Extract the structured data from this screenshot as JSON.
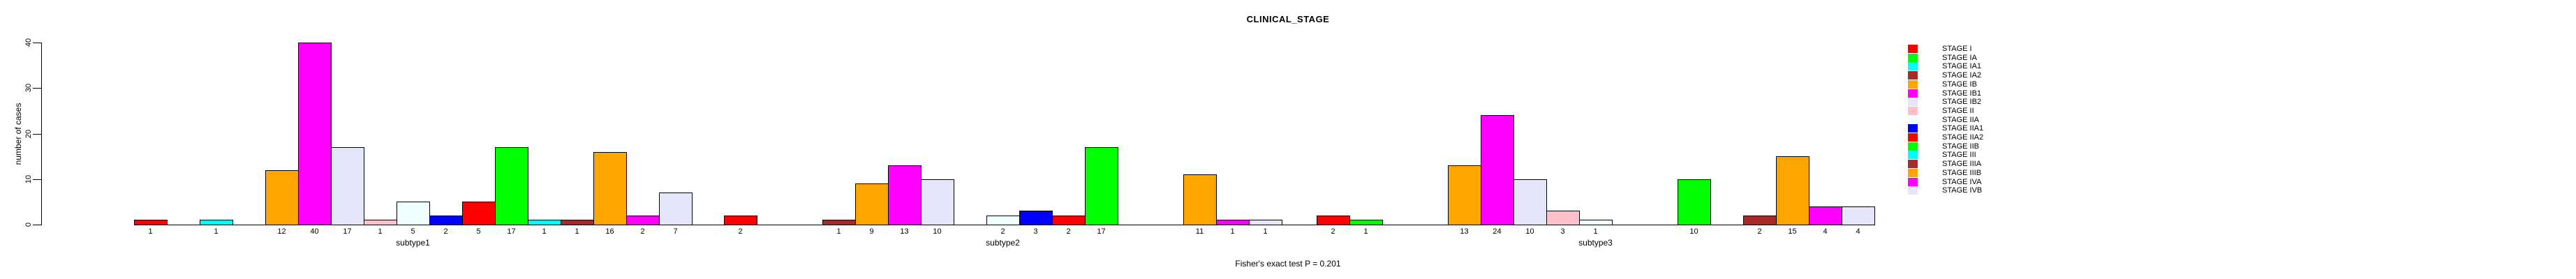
{
  "title": "CLINICAL_STAGE",
  "footer": "Fisher's exact test P = 0.201",
  "y_axis": {
    "label": "number of cases"
  },
  "chart_data": {
    "type": "bar",
    "title": "CLINICAL_STAGE",
    "ylabel": "number of cases",
    "annotation": "Fisher's exact test P = 0.201",
    "ylim": [
      0,
      40
    ],
    "yticks": [
      0,
      10,
      20,
      30,
      40
    ],
    "grid": false,
    "legend_position": "right-of-plot",
    "categories": [
      "subtype1",
      "subtype2",
      "subtype3"
    ],
    "series": [
      {
        "name": "STAGE I",
        "color": "#FF0000",
        "values": [
          1,
          2,
          2
        ]
      },
      {
        "name": "STAGE IA",
        "color": "#00FF00",
        "values": [
          0,
          0,
          1
        ]
      },
      {
        "name": "STAGE IA1",
        "color": "#00FFFF",
        "values": [
          1,
          0,
          0
        ]
      },
      {
        "name": "STAGE IA2",
        "color": "#A52A2A",
        "values": [
          0,
          1,
          0
        ]
      },
      {
        "name": "STAGE IB",
        "color": "#FFA500",
        "values": [
          12,
          9,
          13
        ]
      },
      {
        "name": "STAGE IB1",
        "color": "#FF00FF",
        "values": [
          40,
          13,
          24
        ]
      },
      {
        "name": "STAGE IB2",
        "color": "#E6E6FA",
        "values": [
          17,
          10,
          10
        ]
      },
      {
        "name": "STAGE II",
        "color": "#FFC0CB",
        "values": [
          1,
          0,
          3
        ]
      },
      {
        "name": "STAGE IIA",
        "color": "#F0FFFF",
        "values": [
          5,
          2,
          1
        ]
      },
      {
        "name": "STAGE IIA1",
        "color": "#0000FF",
        "values": [
          2,
          3,
          0
        ]
      },
      {
        "name": "STAGE IIA2",
        "color": "#FF0000",
        "values": [
          5,
          2,
          0
        ]
      },
      {
        "name": "STAGE IIB",
        "color": "#00FF00",
        "values": [
          17,
          17,
          10
        ]
      },
      {
        "name": "STAGE III",
        "color": "#00FFFF",
        "values": [
          1,
          0,
          0
        ]
      },
      {
        "name": "STAGE IIIA",
        "color": "#A52A2A",
        "values": [
          1,
          0,
          2
        ]
      },
      {
        "name": "STAGE IIIB",
        "color": "#FFA500",
        "values": [
          16,
          11,
          15
        ]
      },
      {
        "name": "STAGE IVA",
        "color": "#FF00FF",
        "values": [
          2,
          1,
          4
        ]
      },
      {
        "name": "STAGE IVB",
        "color": "#E6E6FA",
        "values": [
          7,
          1,
          4
        ]
      }
    ]
  }
}
